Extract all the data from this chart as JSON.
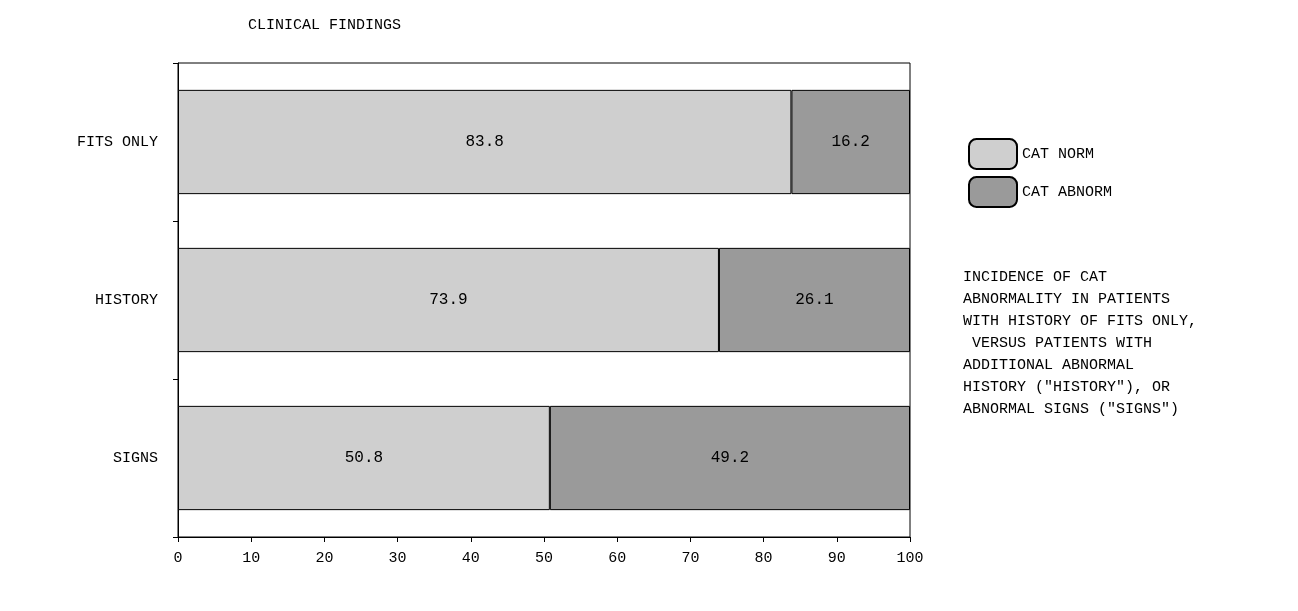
{
  "chart_data": {
    "type": "bar",
    "orientation": "horizontal",
    "stacked": true,
    "title": "CLINICAL FINDINGS",
    "categories": [
      "FITS ONLY",
      "HISTORY",
      "SIGNS"
    ],
    "series": [
      {
        "name": "CAT NORM",
        "color": "#cfcfcf",
        "values": [
          83.8,
          73.9,
          50.8
        ]
      },
      {
        "name": "CAT ABNORM",
        "color": "#9a9a9a",
        "values": [
          16.2,
          26.1,
          49.2
        ]
      }
    ],
    "xlim": [
      0,
      100
    ],
    "xticks": [
      0,
      10,
      20,
      30,
      40,
      50,
      60,
      70,
      80,
      90,
      100
    ],
    "data_labels": true,
    "grid": false,
    "legend": "right",
    "annotations": [
      "INCIDENCE OF CAT ABNORMALITY IN PATIENTS WITH HISTORY OF FITS ONLY, VERSUS PATIENTS WITH ADDITIONAL ABNORMAL HISTORY (\"HISTORY\"), OR ABNORMAL SIGNS (\"SIGNS\")"
    ]
  }
}
